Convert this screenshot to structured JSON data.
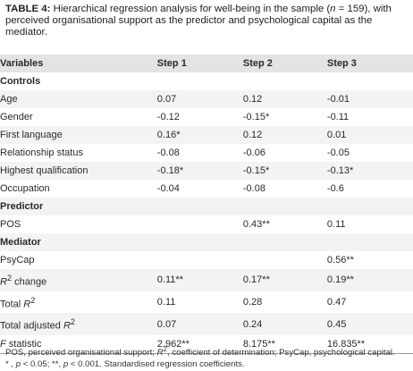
{
  "caption": {
    "label": "TABLE 4:",
    "text_part1": " Hierarchical regression analysis for well-being in the sample (",
    "n_var": "n",
    "text_part2": " = 159), with perceived organisational support as the predictor and psychological capital as the mediator."
  },
  "table": {
    "headers": [
      "Variables",
      "Step 1",
      "Step 2",
      "Step 3"
    ],
    "sections": {
      "controls": "Controls",
      "predictor": "Predictor",
      "mediator": "Mediator"
    },
    "rows": {
      "age": {
        "label": "Age",
        "s1": "0.07",
        "s2": "0.12",
        "s3": "-0.01"
      },
      "gender": {
        "label": "Gender",
        "s1": "-0.12",
        "s2": "-0.15*",
        "s3": "-0.11"
      },
      "first_language": {
        "label": "First language",
        "s1": "0.16*",
        "s2": "0.12",
        "s3": "0.01"
      },
      "relationship": {
        "label": "Relationship status",
        "s1": "-0.08",
        "s2": "-0.06",
        "s3": "-0.05"
      },
      "qualification": {
        "label": "Highest qualification",
        "s1": "-0.18*",
        "s2": "-0.15*",
        "s3": "-0.13*"
      },
      "occupation": {
        "label": "Occupation",
        "s1": "-0.04",
        "s2": "-0.08",
        "s3": "-0.6"
      },
      "pos": {
        "label": "POS",
        "s1": "",
        "s2": "0.43**",
        "s3": "0.11"
      },
      "psycap": {
        "label": "PsyCap",
        "s1": "",
        "s2": "",
        "s3": "0.56**"
      },
      "r2_change": {
        "label_pre": "R",
        "label_sup": "2",
        "label_post": " change",
        "s1": "0.11**",
        "s2": "0.17**",
        "s3": "0.19**"
      },
      "total_r2": {
        "label_pre": "Total ",
        "label_it": "R",
        "label_sup": "2",
        "s1": "0.11",
        "s2": "0.28",
        "s3": "0.47"
      },
      "total_adj_r2": {
        "label_pre": "Total adjusted ",
        "label_it": "R",
        "label_sup": "2",
        "s1": "0.07",
        "s2": "0.24",
        "s3": "0.45"
      },
      "f_stat": {
        "label_it": "F",
        "label_post": " statistic",
        "s1": "2.962**",
        "s2": "8.175**",
        "s3": "16.835**"
      }
    }
  },
  "note": {
    "line1_a": "POS, perceived organisational support; ",
    "line1_r": "R",
    "line1_sup": "2",
    "line1_b": ", coefficient of determination; PsyCap, psychological capital.",
    "line2_a": "* ,",
    "line2_p1": "p",
    "line2_b": " < 0.05; **, ",
    "line2_p2": "p",
    "line2_c": " < 0.001. Standardised regression coefficients."
  }
}
